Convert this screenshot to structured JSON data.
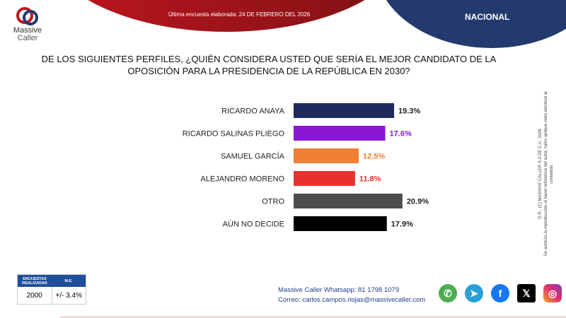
{
  "header": {
    "date_text": "Última encuesta elaborada: 24 DE FEBRERO DEL 2026",
    "region": "NACIONAL"
  },
  "logo": {
    "line1": "Massive",
    "line2": "Caller"
  },
  "question": "DE LOS SIGUIENTES PERFILES, ¿QUIÉN CONSIDERA USTED QUE SERÍA EL MEJOR CANDIDATO DE LA OPOSICIÓN PARA LA PRESIDENCIA DE LA REPÚBLICA EN 2030?",
  "chart_data": {
    "type": "bar",
    "orientation": "horizontal",
    "categories": [
      "RICARDO ANAYA",
      "RICARDO SALINAS PLIEGO",
      "SAMUEL GARCÍA",
      "ALEJANDRO MORENO",
      "OTRO",
      "AÚN NO DECIDE"
    ],
    "values": [
      19.3,
      17.6,
      12.5,
      11.8,
      20.9,
      17.9
    ],
    "labels": [
      "19.3%",
      "17.6%",
      "12.5%",
      "11.8%",
      "20.9%",
      "17.9%"
    ],
    "colors": [
      "#1f2a5c",
      "#8a16d6",
      "#ef7f32",
      "#e8302e",
      "#4d4d4d",
      "#000000"
    ],
    "label_colors": [
      "#222222",
      "#8a16d6",
      "#ef7f32",
      "#e8302e",
      "#222222",
      "#222222"
    ],
    "grid": false
  },
  "rights": {
    "line1": "D.R., (C) MASSIVE CALLER S.A DE C.V., 2026",
    "line2": "Se autoriza la reproducción al hacer referencia del autor, salvo aplique veda electoral al contenido."
  },
  "table": {
    "col1": "ENCUESTAS REALIZADAS",
    "col2": "M.E.",
    "val1": "2000",
    "val2": "+/- 3.4%"
  },
  "contact": {
    "whatsapp_label": "Massive Caller Whatsapp:",
    "whatsapp": "81 1798 1079",
    "email_label": "Correo:",
    "email": "carlos.campos.riojas@massivecaller.com"
  },
  "social": [
    "whatsapp",
    "telegram",
    "facebook",
    "x",
    "instagram"
  ]
}
